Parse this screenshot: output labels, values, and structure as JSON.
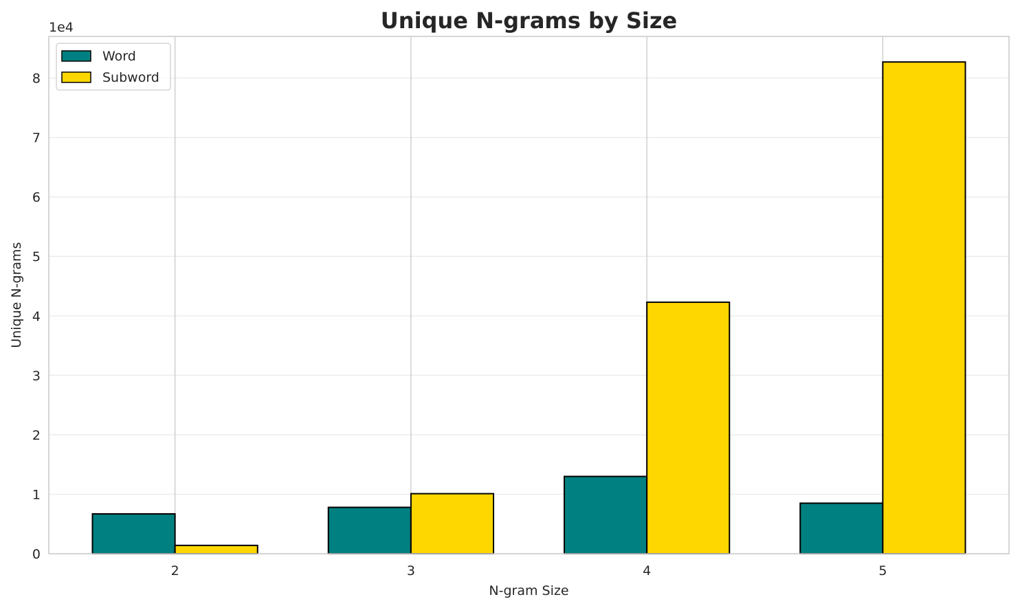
{
  "chart_data": {
    "type": "bar",
    "title": "Unique N-grams by Size",
    "xlabel": "N-gram Size",
    "ylabel": "Unique N-grams",
    "y_offset_text": "1e4",
    "categories": [
      "2",
      "3",
      "4",
      "5"
    ],
    "series": [
      {
        "name": "Word",
        "color": "#008080",
        "values": [
          6700,
          7800,
          13000,
          8500
        ]
      },
      {
        "name": "Subword",
        "color": "#FFD700",
        "values": [
          1400,
          10100,
          42300,
          82700
        ]
      }
    ],
    "ylim": [
      0,
      87000
    ],
    "y_ticks": [
      0,
      10000,
      20000,
      30000,
      40000,
      50000,
      60000,
      70000,
      80000
    ],
    "y_tick_labels": [
      "0",
      "1",
      "2",
      "3",
      "4",
      "5",
      "6",
      "7",
      "8"
    ],
    "grid": true,
    "legend_position": "top-left"
  }
}
